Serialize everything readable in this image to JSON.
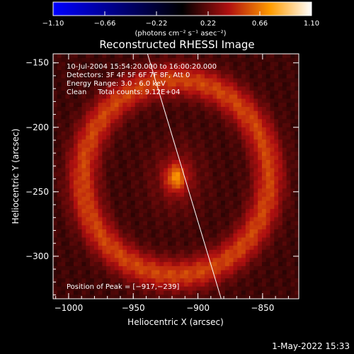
{
  "chart_data": {
    "type": "heatmap",
    "title": "Reconstructed RHESSI Image",
    "xlabel": "Heliocentric X (arcsec)",
    "ylabel": "Heliocentric Y (arcsec)",
    "xlim": [
      -1012,
      -822
    ],
    "ylim": [
      -333,
      -143
    ],
    "x_ticks": [
      -1000,
      -950,
      -900,
      -850
    ],
    "y_ticks": [
      -150,
      -200,
      -250,
      -300
    ],
    "x_tick_labels": [
      "−1000",
      "−950",
      "−900",
      "−850"
    ],
    "y_tick_labels": [
      "−150",
      "−200",
      "−250",
      "−300"
    ],
    "colorbar": {
      "range": [
        -1.1,
        1.1
      ],
      "ticks": [
        -1.1,
        -0.66,
        -0.22,
        0.22,
        0.66,
        1.1
      ],
      "tick_labels": [
        "−1.10",
        "−0.66",
        "−0.22",
        "0.22",
        "0.66",
        "1.10"
      ],
      "unit_label": "(photons cm⁻² s⁻¹ asec⁻²)"
    },
    "annotations": [
      "10-Jul-2004 15:54:20.000 to 16:00:20.000",
      "Detectors: 3F 4F 5F 6F 7F 8F, Att 0",
      "Energy Range: 3.0 - 6.0 keV",
      "Clean     Total counts: 9.12E+04"
    ],
    "peak_label": "Position of Peak = [−917,−239]",
    "peak": {
      "x": -917,
      "y": -239,
      "value": 1.1
    },
    "limb_line": [
      [
        -939,
        -143
      ],
      [
        -882,
        -333
      ]
    ],
    "ring": {
      "center": [
        -917,
        -239
      ],
      "radius_arcsec": 72,
      "width_arcsec": 22
    }
  },
  "footer_date": "1-May-2022 15:33"
}
